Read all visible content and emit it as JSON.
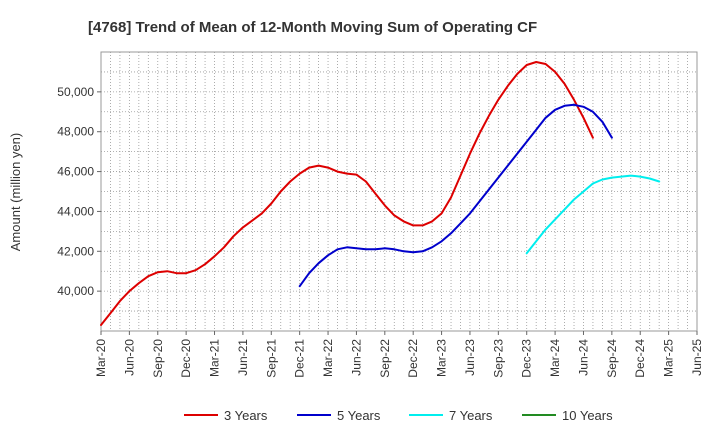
{
  "chart_data": {
    "type": "line",
    "title": "[4768]  Trend of Mean of 12-Month Moving Sum of Operating CF",
    "xlabel": "",
    "ylabel": "Amount (million yen)",
    "ylim": [
      38000,
      52000
    ],
    "y_ticks": [
      40000,
      42000,
      44000,
      46000,
      48000,
      50000
    ],
    "y_tick_labels": [
      "40,000",
      "42,000",
      "44,000",
      "46,000",
      "48,000",
      "50,000"
    ],
    "x_tick_labels": [
      "Mar-20",
      "Jun-20",
      "Sep-20",
      "Dec-20",
      "Mar-21",
      "Jun-21",
      "Sep-21",
      "Dec-21",
      "Mar-22",
      "Jun-22",
      "Sep-22",
      "Dec-22",
      "Mar-23",
      "Jun-23",
      "Sep-23",
      "Dec-23",
      "Mar-24",
      "Jun-24",
      "Sep-24",
      "Dec-24",
      "Mar-25",
      "Jun-25"
    ],
    "x_start": "Mar-20",
    "grid": true,
    "legend_position": "bottom",
    "series": [
      {
        "name": "3 Years",
        "color": "#dd0000",
        "start_index": 0,
        "values": [
          38300,
          38900,
          39500,
          40000,
          40400,
          40750,
          40950,
          41000,
          40900,
          40900,
          41050,
          41350,
          41750,
          42200,
          42750,
          43200,
          43550,
          43900,
          44400,
          45000,
          45500,
          45900,
          46200,
          46300,
          46200,
          46000,
          45900,
          45850,
          45500,
          44900,
          44300,
          43800,
          43500,
          43300,
          43300,
          43500,
          43900,
          44700,
          45800,
          46900,
          47900,
          48800,
          49600,
          50300,
          50900,
          51350,
          51500,
          51400,
          51000,
          50400,
          49600,
          48700,
          47700
        ]
      },
      {
        "name": "5 Years",
        "color": "#0000cc",
        "start_index": 21,
        "values": [
          40250,
          40900,
          41400,
          41800,
          42100,
          42200,
          42150,
          42100,
          42100,
          42150,
          42100,
          42000,
          41950,
          42000,
          42200,
          42500,
          42900,
          43400,
          43900,
          44500,
          45100,
          45700,
          46300,
          46900,
          47500,
          48100,
          48700,
          49100,
          49300,
          49350,
          49250,
          49000,
          48500,
          47700
        ]
      },
      {
        "name": "7 Years",
        "color": "#00eeee",
        "start_index": 45,
        "values": [
          41900,
          42500,
          43100,
          43600,
          44100,
          44600,
          45000,
          45400,
          45600,
          45700,
          45750,
          45800,
          45750,
          45650,
          45500
        ]
      },
      {
        "name": "10 Years",
        "color": "#228b22",
        "start_index": 0,
        "values": []
      }
    ]
  }
}
